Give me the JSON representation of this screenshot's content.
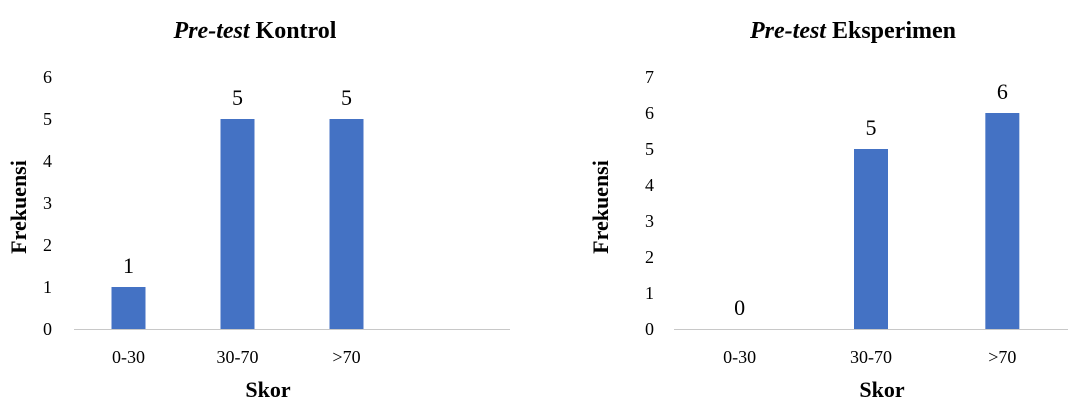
{
  "chart_data": [
    {
      "type": "bar",
      "title_italic": "Pre-test",
      "title_rest": "Kontrol",
      "xlabel": "Skor",
      "ylabel": "Frekuensi",
      "categories": [
        "0-30",
        "30-70",
        ">70"
      ],
      "values": [
        1,
        5,
        5
      ],
      "ylim": [
        0,
        6
      ],
      "yticks": [
        0,
        1,
        2,
        3,
        4,
        5,
        6
      ],
      "grid": false,
      "color": "#4472C4"
    },
    {
      "type": "bar",
      "title_italic": "Pre-test",
      "title_rest": "Eksperimen",
      "xlabel": "Skor",
      "ylabel": "Frekuensi",
      "categories": [
        "0-30",
        "30-70",
        ">70"
      ],
      "values": [
        0,
        5,
        6
      ],
      "ylim": [
        0,
        7
      ],
      "yticks": [
        0,
        1,
        2,
        3,
        4,
        5,
        6,
        7
      ],
      "grid": false,
      "color": "#4472C4"
    }
  ]
}
